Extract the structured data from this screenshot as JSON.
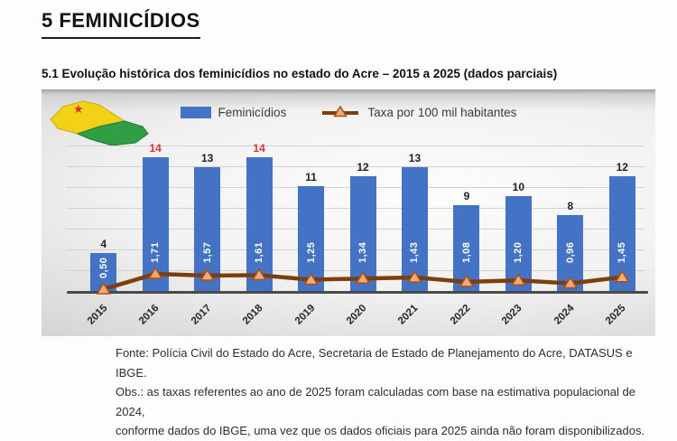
{
  "document": {
    "heading": "5  FEMINICÍDIOS",
    "subtitle": "5.1 Evolução histórica dos feminicídios no estado do Acre – 2015 a 2025 (dados parciais)",
    "footer": {
      "line1": "Fonte: Polícia Civil do Estado do Acre, Secretaria de Estado de Planejamento do Acre, DATASUS e IBGE.",
      "line2": "Obs.: as taxas referentes ao ano de 2025 foram calculadas com base na estimativa populacional de 2024,",
      "line3": "conforme dados do IBGE, uma vez que os dados oficiais para 2025 ainda não foram disponibilizados."
    }
  },
  "legend": {
    "bars_label": "Feminicídios",
    "line_label": "Taxa por 100 mil habitantes"
  },
  "icons": {
    "map": "acre-state-flag-map"
  },
  "colors": {
    "bar": "#4472c4",
    "line": "#7e3e0c",
    "marker_fill": "#f5a878",
    "marker_stroke": "#a85217",
    "value_label": "#1f1f1f",
    "value_label_highlight": "#e03030",
    "rate_text": "#ffffff",
    "grid": "#d2d2d2",
    "axis": "#4a4a4a"
  },
  "chart_data": {
    "type": "bar",
    "subtype": "combo-bar-line",
    "title": "5.1 Evolução histórica dos feminicídios no estado do Acre – 2015 a 2025 (dados parciais)",
    "categories": [
      "2015",
      "2016",
      "2017",
      "2018",
      "2019",
      "2020",
      "2021",
      "2022",
      "2023",
      "2024",
      "2025"
    ],
    "series": [
      {
        "name": "Feminicídios",
        "type": "bar",
        "color": "#4472c4",
        "values": [
          4,
          14,
          13,
          14,
          11,
          12,
          13,
          9,
          10,
          8,
          12
        ],
        "label_highlight_indices": [
          1,
          3
        ]
      },
      {
        "name": "Taxa por 100 mil habitantes",
        "type": "line",
        "color": "#7e3e0c",
        "values": [
          0.5,
          1.71,
          1.57,
          1.61,
          1.25,
          1.34,
          1.43,
          1.08,
          1.2,
          0.96,
          1.45
        ],
        "value_labels": [
          "0,50",
          "1,71",
          "1,57",
          "1,61",
          "1,25",
          "1,34",
          "1,43",
          "1,08",
          "1,20",
          "0,96",
          "1,45"
        ]
      }
    ],
    "xlabel": "",
    "ylabel": "",
    "ylim": [
      0,
      16
    ],
    "grid": true,
    "legend_position": "top-center"
  }
}
